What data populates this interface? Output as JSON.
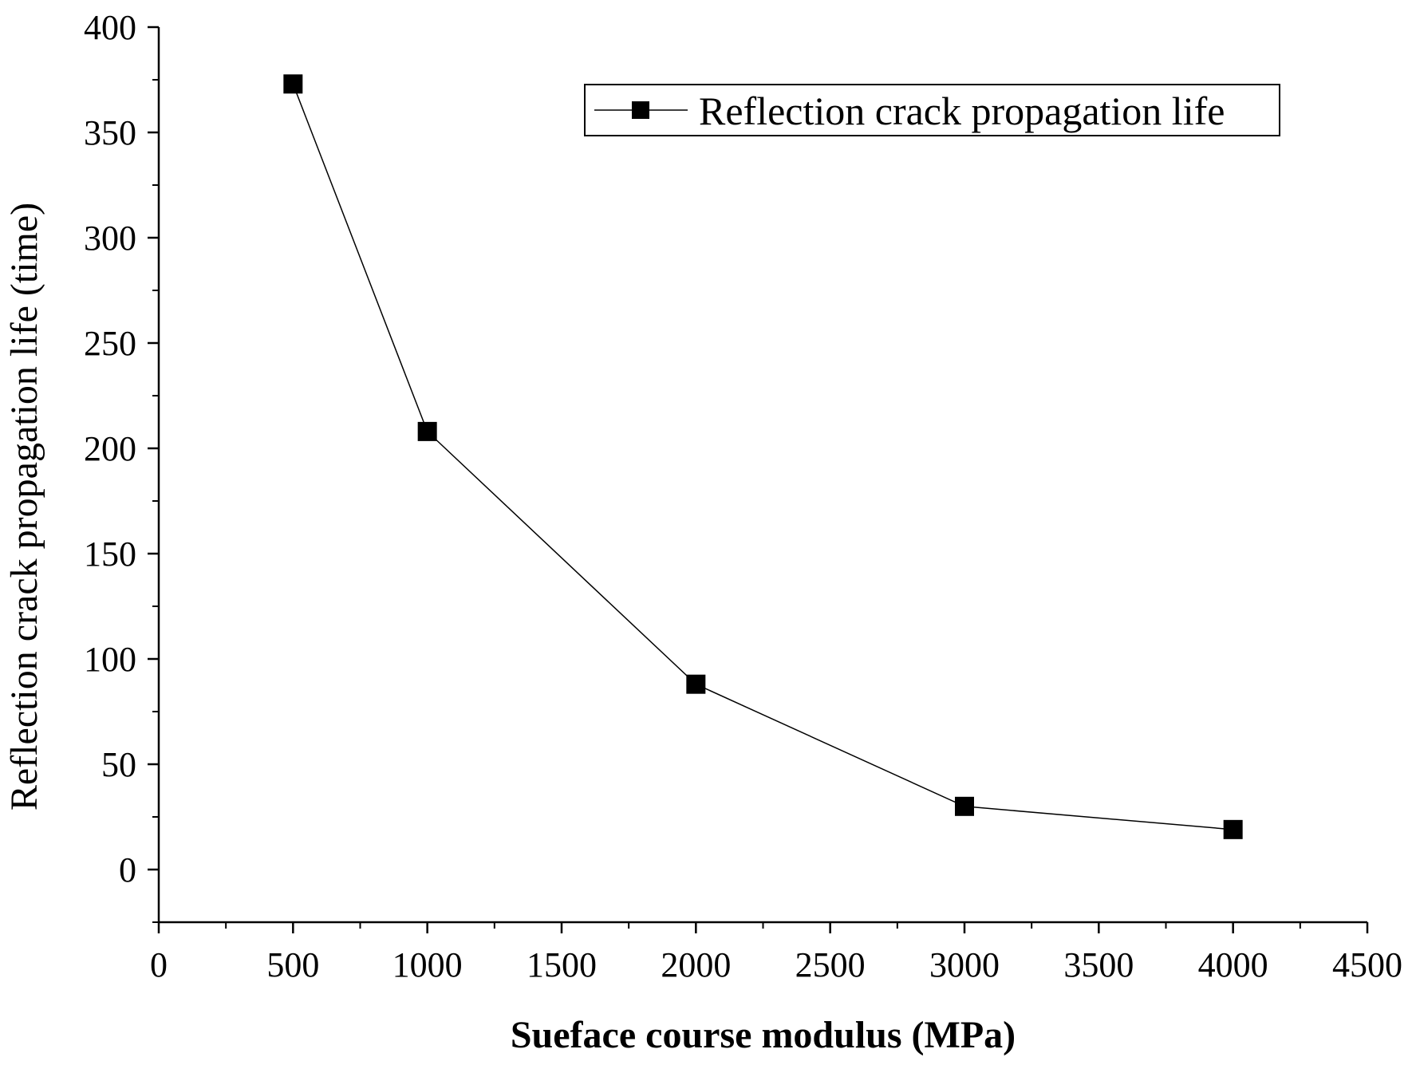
{
  "chart_data": {
    "type": "line",
    "title": "",
    "xlabel": "Sueface course modulus (MPa)",
    "ylabel": "Reflection crack propagation life (time)",
    "xlim": [
      0,
      4500
    ],
    "ylim": [
      -25,
      400
    ],
    "xticks": [
      0,
      500,
      1000,
      1500,
      2000,
      2500,
      3000,
      3500,
      4000,
      4500
    ],
    "xtick_labels": [
      "0",
      "500",
      "1000",
      "1500",
      "2000",
      "2500",
      "3000",
      "3500",
      "4000",
      "4500"
    ],
    "yticks": [
      0,
      50,
      100,
      150,
      200,
      250,
      300,
      350,
      400
    ],
    "ytick_labels": [
      "0",
      "50",
      "100",
      "150",
      "200",
      "250",
      "300",
      "350",
      "400"
    ],
    "grid": false,
    "legend_position": "top-right",
    "series": [
      {
        "name": "Reflection crack propagation life",
        "marker": "square",
        "color": "#000000",
        "x": [
          500,
          1000,
          2000,
          3000,
          4000
        ],
        "y": [
          373,
          208,
          88,
          30,
          19
        ]
      }
    ]
  }
}
